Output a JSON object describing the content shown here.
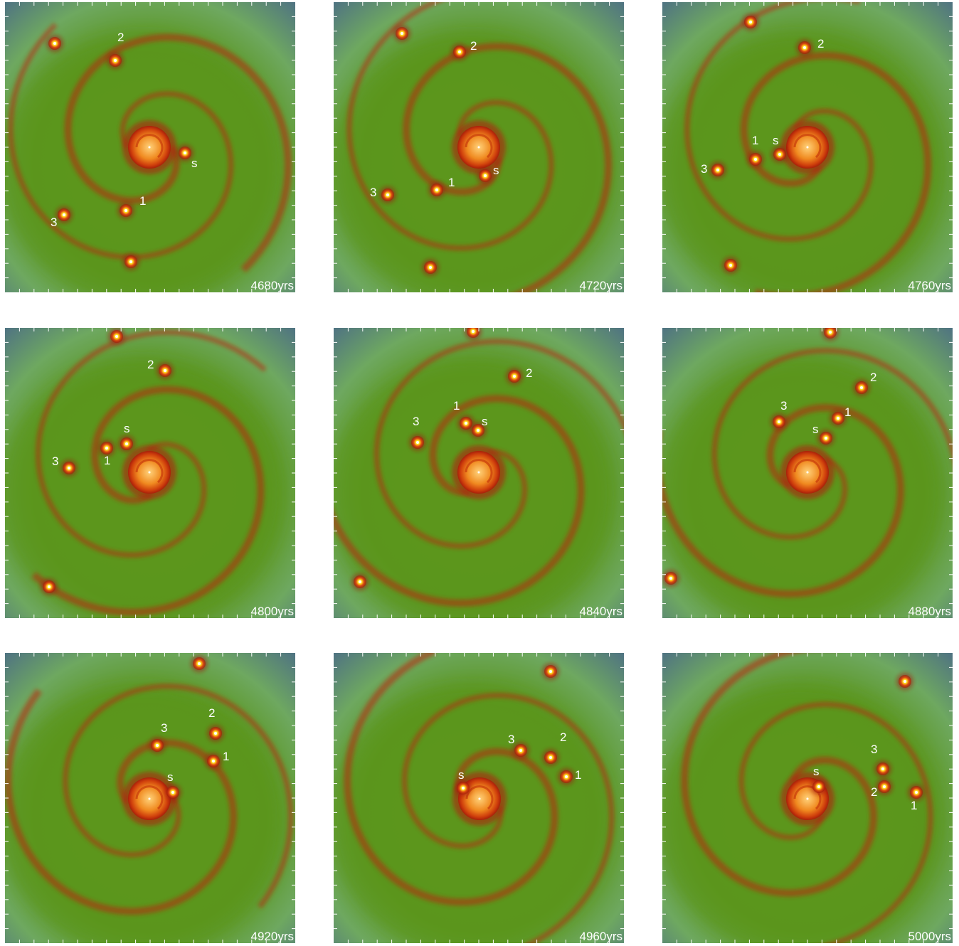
{
  "panels": [
    {
      "time": "4680yrs",
      "labels": [
        "2",
        "s",
        "1",
        "3"
      ]
    },
    {
      "time": "4720yrs",
      "labels": [
        "2",
        "s",
        "1",
        "3"
      ]
    },
    {
      "time": "4760yrs",
      "labels": [
        "2",
        "1",
        "s",
        "3"
      ]
    },
    {
      "time": "4800yrs",
      "labels": [
        "2",
        "s",
        "1",
        "3"
      ]
    },
    {
      "time": "4840yrs",
      "labels": [
        "2",
        "1",
        "s",
        "3"
      ]
    },
    {
      "time": "4880yrs",
      "labels": [
        "2",
        "1",
        "s",
        "3"
      ]
    },
    {
      "time": "4920yrs",
      "labels": [
        "2",
        "3",
        "1",
        "s"
      ]
    },
    {
      "time": "4960yrs",
      "labels": [
        "2",
        "3",
        "1",
        "s"
      ]
    },
    {
      "time": "5000yrs",
      "labels": [
        "3",
        "2",
        "1",
        "s"
      ]
    }
  ]
}
